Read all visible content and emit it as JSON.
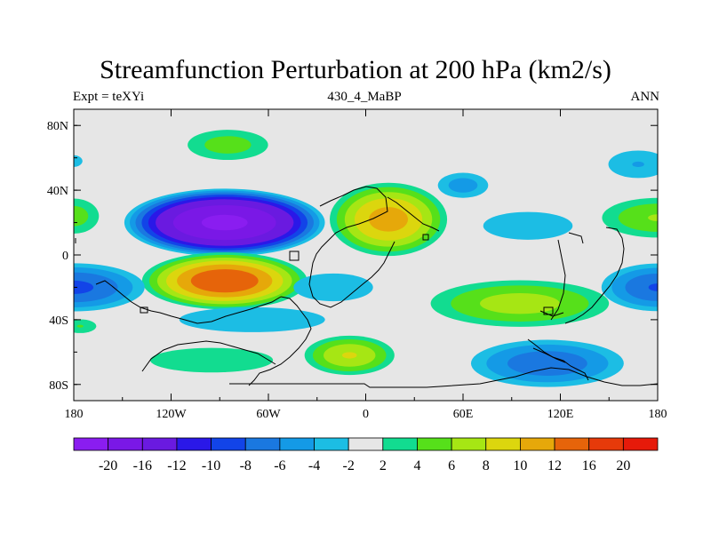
{
  "title": "Streamfunction Perturbation at 200 hPa (km2/s)",
  "subtitle_left": "Expt = teXYi",
  "subtitle_center": "430_4_MaBP",
  "subtitle_right": "ANN",
  "map_data": {
    "type": "filled-contour-map",
    "projection": "cylindrical-equidistant",
    "lon_range": [
      -180,
      180
    ],
    "lat_range": [
      -90,
      90
    ],
    "x_ticks": [
      {
        "lon": -180,
        "label": "180"
      },
      {
        "lon": -120,
        "label": "120W"
      },
      {
        "lon": -60,
        "label": "60W"
      },
      {
        "lon": 0,
        "label": "0"
      },
      {
        "lon": 60,
        "label": "60E"
      },
      {
        "lon": 120,
        "label": "120E"
      },
      {
        "lon": 180,
        "label": "180"
      }
    ],
    "y_ticks": [
      {
        "lat": 80,
        "label": "80N"
      },
      {
        "lat": 40,
        "label": "40N"
      },
      {
        "lat": 0,
        "label": "0"
      },
      {
        "lat": -40,
        "label": "40S"
      },
      {
        "lat": -80,
        "label": "80S"
      }
    ],
    "background_color": "#e6e6e6",
    "colorbar": {
      "colors": [
        "#8a1df0",
        "#7a18e6",
        "#6a1ae0",
        "#2a18e8",
        "#1244e8",
        "#1a78e0",
        "#149ae6",
        "#1cbde4",
        "#e6e6e6",
        "#12dc90",
        "#56e01a",
        "#a6e614",
        "#dcd60e",
        "#e6a80a",
        "#e6640a",
        "#e63a0a",
        "#e61a0a"
      ],
      "labels": [
        "-20",
        "-16",
        "-12",
        "-10",
        "-8",
        "-6",
        "-4",
        "-2",
        "2",
        "4",
        "6",
        "8",
        "10",
        "12",
        "16",
        "20"
      ]
    },
    "blobs": [
      {
        "lon": -87,
        "lat": 20,
        "rx": 65,
        "ry": 22,
        "peak": -21
      },
      {
        "lon": -85,
        "lat": 68,
        "rx": 32,
        "ry": 12,
        "peak": 5
      },
      {
        "lon": -180,
        "lat": 24,
        "rx": 20,
        "ry": 14,
        "peak": 5
      },
      {
        "lon": -180,
        "lat": 58,
        "rx": 12,
        "ry": 8,
        "peak": -2.5
      },
      {
        "lon": 14,
        "lat": 22,
        "rx": 40,
        "ry": 25,
        "peak": 11
      },
      {
        "lon": 60,
        "lat": 43,
        "rx": 20,
        "ry": 10,
        "peak": -5
      },
      {
        "lon": 168,
        "lat": 56,
        "rx": 26,
        "ry": 12,
        "peak": -4
      },
      {
        "lon": 180,
        "lat": 23,
        "rx": 42,
        "ry": 15,
        "peak": 6
      },
      {
        "lon": 100,
        "lat": 18,
        "rx": 45,
        "ry": 14,
        "peak": -3.2
      },
      {
        "lon": -87,
        "lat": -16,
        "rx": 55,
        "ry": 19,
        "peak": 14
      },
      {
        "lon": -180,
        "lat": -20,
        "rx": 50,
        "ry": 17,
        "peak": -8.5
      },
      {
        "lon": 180,
        "lat": -20,
        "rx": 40,
        "ry": 17,
        "peak": -8
      },
      {
        "lon": -70,
        "lat": -40,
        "rx": 70,
        "ry": 12,
        "peak": -3.4
      },
      {
        "lon": -20,
        "lat": -20,
        "rx": 40,
        "ry": 14,
        "peak": -3.2
      },
      {
        "lon": 95,
        "lat": -30,
        "rx": 65,
        "ry": 17,
        "peak": 7
      },
      {
        "lon": -10,
        "lat": -62,
        "rx": 32,
        "ry": 14,
        "peak": 8
      },
      {
        "lon": -95,
        "lat": -65,
        "rx": 55,
        "ry": 11,
        "peak": 3.8
      },
      {
        "lon": 112,
        "lat": -67,
        "rx": 55,
        "ry": 17,
        "peak": -7.5
      },
      {
        "lon": -176,
        "lat": -44,
        "rx": 14,
        "ry": 6,
        "peak": 4
      }
    ]
  }
}
